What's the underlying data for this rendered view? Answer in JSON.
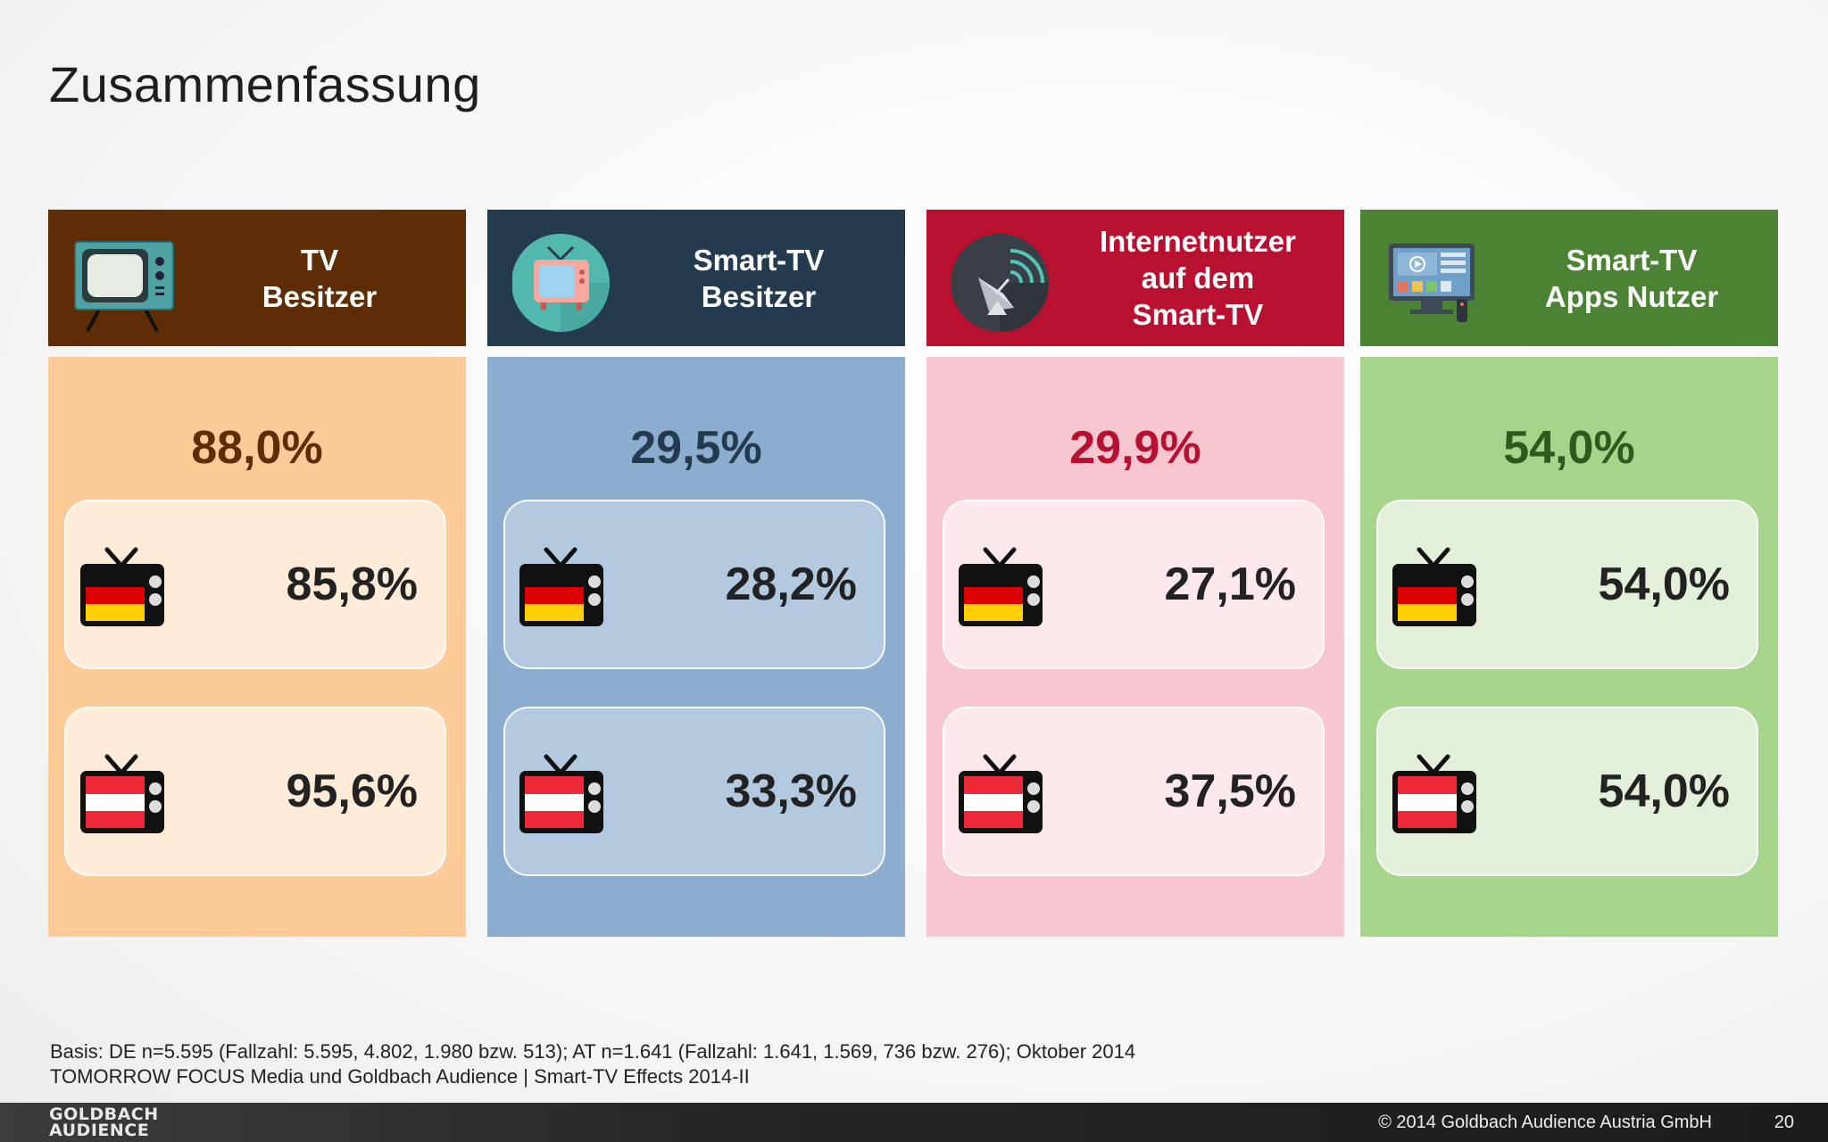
{
  "title": "Zusammenfassung",
  "columns": [
    {
      "header": [
        "TV",
        "Besitzer"
      ],
      "icon": "retro-tv-icon",
      "total": "88,0%",
      "de": "85,8%",
      "at": "95,6%",
      "colors": {
        "header": "#5e2c05",
        "body": "#fdcb97",
        "total": "#5e2c05",
        "card": "#feebd8"
      }
    },
    {
      "header": [
        "Smart-TV",
        "Besitzer"
      ],
      "icon": "smart-tv-icon",
      "total": "29,5%",
      "de": "28,2%",
      "at": "33,3%",
      "colors": {
        "header": "#243a4f",
        "body": "#8cadcf",
        "total": "#243a4f",
        "card": "#b2c9e0"
      }
    },
    {
      "header": [
        "Internetnutzer",
        "auf dem",
        "Smart-TV"
      ],
      "icon": "satellite-dish-icon",
      "total": "29,9%",
      "de": "27,1%",
      "at": "37,5%",
      "colors": {
        "header": "#b8112f",
        "body": "#f8c6d0",
        "total": "#b8112f",
        "card": "#fde9ec"
      }
    },
    {
      "header": [
        "Smart-TV",
        "Apps Nutzer"
      ],
      "icon": "smart-tv-apps-icon",
      "total": "54,0%",
      "de": "54,0%",
      "at": "54,0%",
      "colors": {
        "header": "#4c8234",
        "body": "#a7d48b",
        "total": "#2f5a1f",
        "card": "#e3efd9"
      }
    }
  ],
  "footnote": [
    "Basis: DE n=5.595 (Fallzahl: 5.595, 4.802, 1.980 bzw. 513); AT n=1.641 (Fallzahl: 1.641, 1.569, 736 bzw. 276);  Oktober 2014",
    "TOMORROW FOCUS Media und Goldbach Audience | Smart-TV Effects 2014-II"
  ],
  "logo": [
    "GOLDBACH",
    "AUDIENCE"
  ],
  "copyright": "© 2014 Goldbach Audience Austria GmbH",
  "page_number": "20"
}
